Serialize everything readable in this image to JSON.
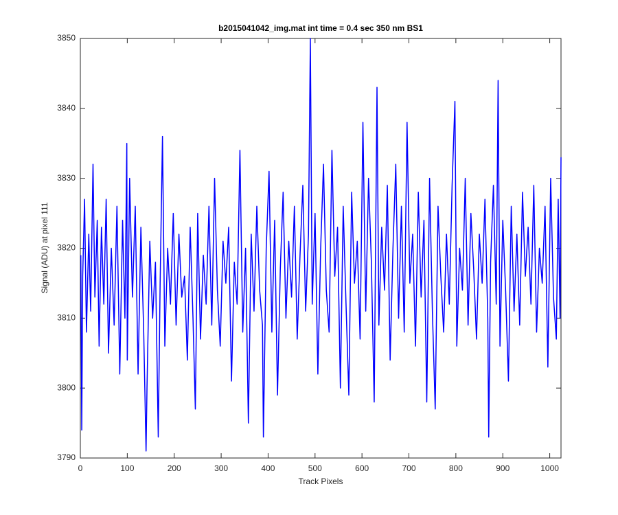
{
  "chart_data": {
    "type": "line",
    "title": "b2015041042_img.mat int time = 0.4 sec  350 nm BS1",
    "x_label": "Track Pixels",
    "y_label": "Signal (ADU) at pixel 111",
    "x": [
      1,
      3,
      5,
      9,
      13,
      18,
      22,
      27,
      31,
      36,
      40,
      45,
      50,
      55,
      60,
      66,
      72,
      78,
      84,
      90,
      95,
      99,
      100,
      105,
      111,
      117,
      123,
      129,
      135,
      140,
      142,
      148,
      154,
      160,
      166,
      170,
      175,
      180,
      186,
      192,
      198,
      204,
      210,
      216,
      222,
      228,
      234,
      240,
      245,
      250,
      256,
      262,
      268,
      274,
      280,
      286,
      292,
      298,
      304,
      310,
      316,
      322,
      328,
      334,
      340,
      346,
      352,
      358,
      364,
      370,
      376,
      382,
      388,
      390,
      396,
      402,
      408,
      414,
      420,
      426,
      432,
      438,
      444,
      450,
      456,
      462,
      468,
      474,
      480,
      486,
      490,
      494,
      500,
      506,
      512,
      518,
      524,
      530,
      536,
      542,
      548,
      554,
      560,
      566,
      572,
      578,
      584,
      590,
      596,
      602,
      608,
      614,
      620,
      626,
      632,
      636,
      642,
      648,
      654,
      660,
      666,
      672,
      678,
      684,
      690,
      696,
      702,
      708,
      714,
      720,
      726,
      732,
      738,
      744,
      750,
      756,
      762,
      768,
      774,
      780,
      786,
      792,
      798,
      802,
      808,
      814,
      820,
      826,
      832,
      838,
      844,
      850,
      856,
      862,
      868,
      870,
      874,
      880,
      886,
      890,
      894,
      900,
      906,
      912,
      918,
      924,
      930,
      936,
      942,
      948,
      954,
      960,
      966,
      972,
      978,
      984,
      990,
      996,
      1002,
      1008,
      1014,
      1018,
      1022,
      1024
    ],
    "series": [
      {
        "name": "Signal",
        "color": "#0000ff",
        "values": [
          3819,
          3794,
          3816,
          3827,
          3808,
          3822,
          3811,
          3832,
          3813,
          3824,
          3806,
          3823,
          3812,
          3827,
          3805,
          3820,
          3809,
          3826,
          3802,
          3824,
          3810,
          3835,
          3804,
          3830,
          3813,
          3826,
          3802,
          3823,
          3808,
          3791,
          3800,
          3821,
          3810,
          3818,
          3793,
          3815,
          3836,
          3806,
          3820,
          3812,
          3825,
          3809,
          3822,
          3813,
          3816,
          3804,
          3823,
          3810,
          3797,
          3825,
          3807,
          3819,
          3812,
          3826,
          3809,
          3830,
          3814,
          3806,
          3821,
          3815,
          3823,
          3801,
          3818,
          3812,
          3834,
          3808,
          3820,
          3795,
          3822,
          3811,
          3826,
          3814,
          3809,
          3793,
          3820,
          3831,
          3808,
          3824,
          3799,
          3817,
          3828,
          3810,
          3821,
          3813,
          3826,
          3807,
          3819,
          3829,
          3811,
          3822,
          3850,
          3812,
          3825,
          3802,
          3820,
          3832,
          3814,
          3808,
          3834,
          3816,
          3823,
          3800,
          3826,
          3812,
          3799,
          3828,
          3815,
          3821,
          3807,
          3838,
          3811,
          3830,
          3818,
          3798,
          3843,
          3809,
          3823,
          3814,
          3829,
          3804,
          3820,
          3832,
          3810,
          3826,
          3808,
          3838,
          3815,
          3822,
          3806,
          3828,
          3813,
          3824,
          3798,
          3830,
          3811,
          3797,
          3826,
          3816,
          3808,
          3822,
          3812,
          3829,
          3841,
          3806,
          3820,
          3814,
          3830,
          3809,
          3825,
          3817,
          3807,
          3822,
          3815,
          3827,
          3810,
          3793,
          3818,
          3829,
          3812,
          3844,
          3806,
          3824,
          3814,
          3801,
          3826,
          3811,
          3822,
          3809,
          3828,
          3816,
          3823,
          3812,
          3829,
          3808,
          3820,
          3815,
          3826,
          3803,
          3830,
          3813,
          3807,
          3827,
          3810,
          3833
        ]
      }
    ],
    "xlim": [
      0,
      1024
    ],
    "ylim": [
      3790,
      3850
    ],
    "xticks": [
      0,
      100,
      200,
      300,
      400,
      500,
      600,
      700,
      800,
      900,
      1000
    ],
    "yticks": [
      3790,
      3800,
      3810,
      3820,
      3830,
      3840,
      3850
    ]
  }
}
